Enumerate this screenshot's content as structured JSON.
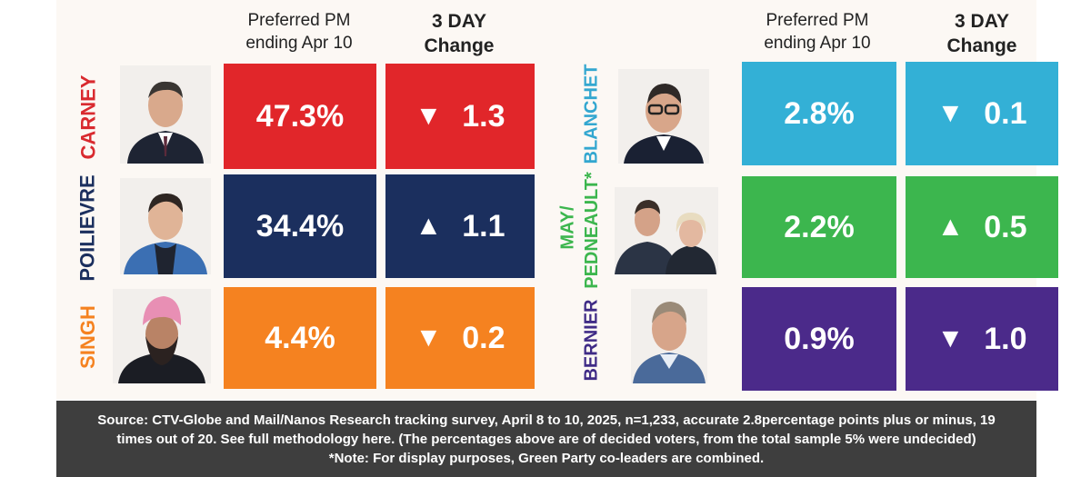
{
  "headers": {
    "preferred_line1": "Preferred PM",
    "preferred_line2": "ending Apr 10",
    "change_line1": "3 DAY",
    "change_line2": "Change"
  },
  "leaders_label_right": {
    "blanchet": "BLANCHET",
    "may_pedneault": "MAY/",
    "pedneault": "PEDNEAULT*",
    "bernier": "BERNIER"
  },
  "chart_data": {
    "type": "table",
    "title": "Preferred PM ending Apr 10 / 3 DAY Change",
    "columns": [
      "Preferred PM ending Apr 10",
      "3 DAY Change"
    ],
    "rows": [
      {
        "name": "CARNEY",
        "value": "47.3%",
        "direction": "down",
        "arrow": "▼",
        "change": "1.3",
        "color": "#e1262a"
      },
      {
        "name": "POILIEVRE",
        "value": "34.4%",
        "direction": "up",
        "arrow": "▲",
        "change": "1.1",
        "color": "#1b2f5e"
      },
      {
        "name": "SINGH",
        "value": "4.4%",
        "direction": "down",
        "arrow": "▼",
        "change": "0.2",
        "color": "#f58220"
      },
      {
        "name": "BLANCHET",
        "value": "2.8%",
        "direction": "down",
        "arrow": "▼",
        "change": "0.1",
        "color": "#33b0d6"
      },
      {
        "name": "MAY/PEDNEAULT*",
        "value": "2.2%",
        "direction": "up",
        "arrow": "▲",
        "change": "0.5",
        "color": "#3cb64e"
      },
      {
        "name": "BERNIER",
        "value": "0.9%",
        "direction": "down",
        "arrow": "▼",
        "change": "1.0",
        "color": "#4b2a8a"
      }
    ]
  },
  "label_colors": {
    "carney": "#d92a2f",
    "poilievre": "#1b2f5e",
    "singh": "#f58220",
    "blanchet": "#33a7d0",
    "may": "#3cb64e",
    "bernier": "#3f2b86"
  },
  "footer": {
    "line1": "Source: CTV-Globe and Mail/Nanos Research tracking survey, April 8 to 10,  2025, n=1,233, accurate 2.8percentage points plus or minus, 19",
    "line2": "times out of 20. See full methodology here. (The percentages above are of decided voters, from the total sample 5% were undecided)",
    "line3": "*Note: For display purposes, Green Party co-leaders are combined."
  }
}
